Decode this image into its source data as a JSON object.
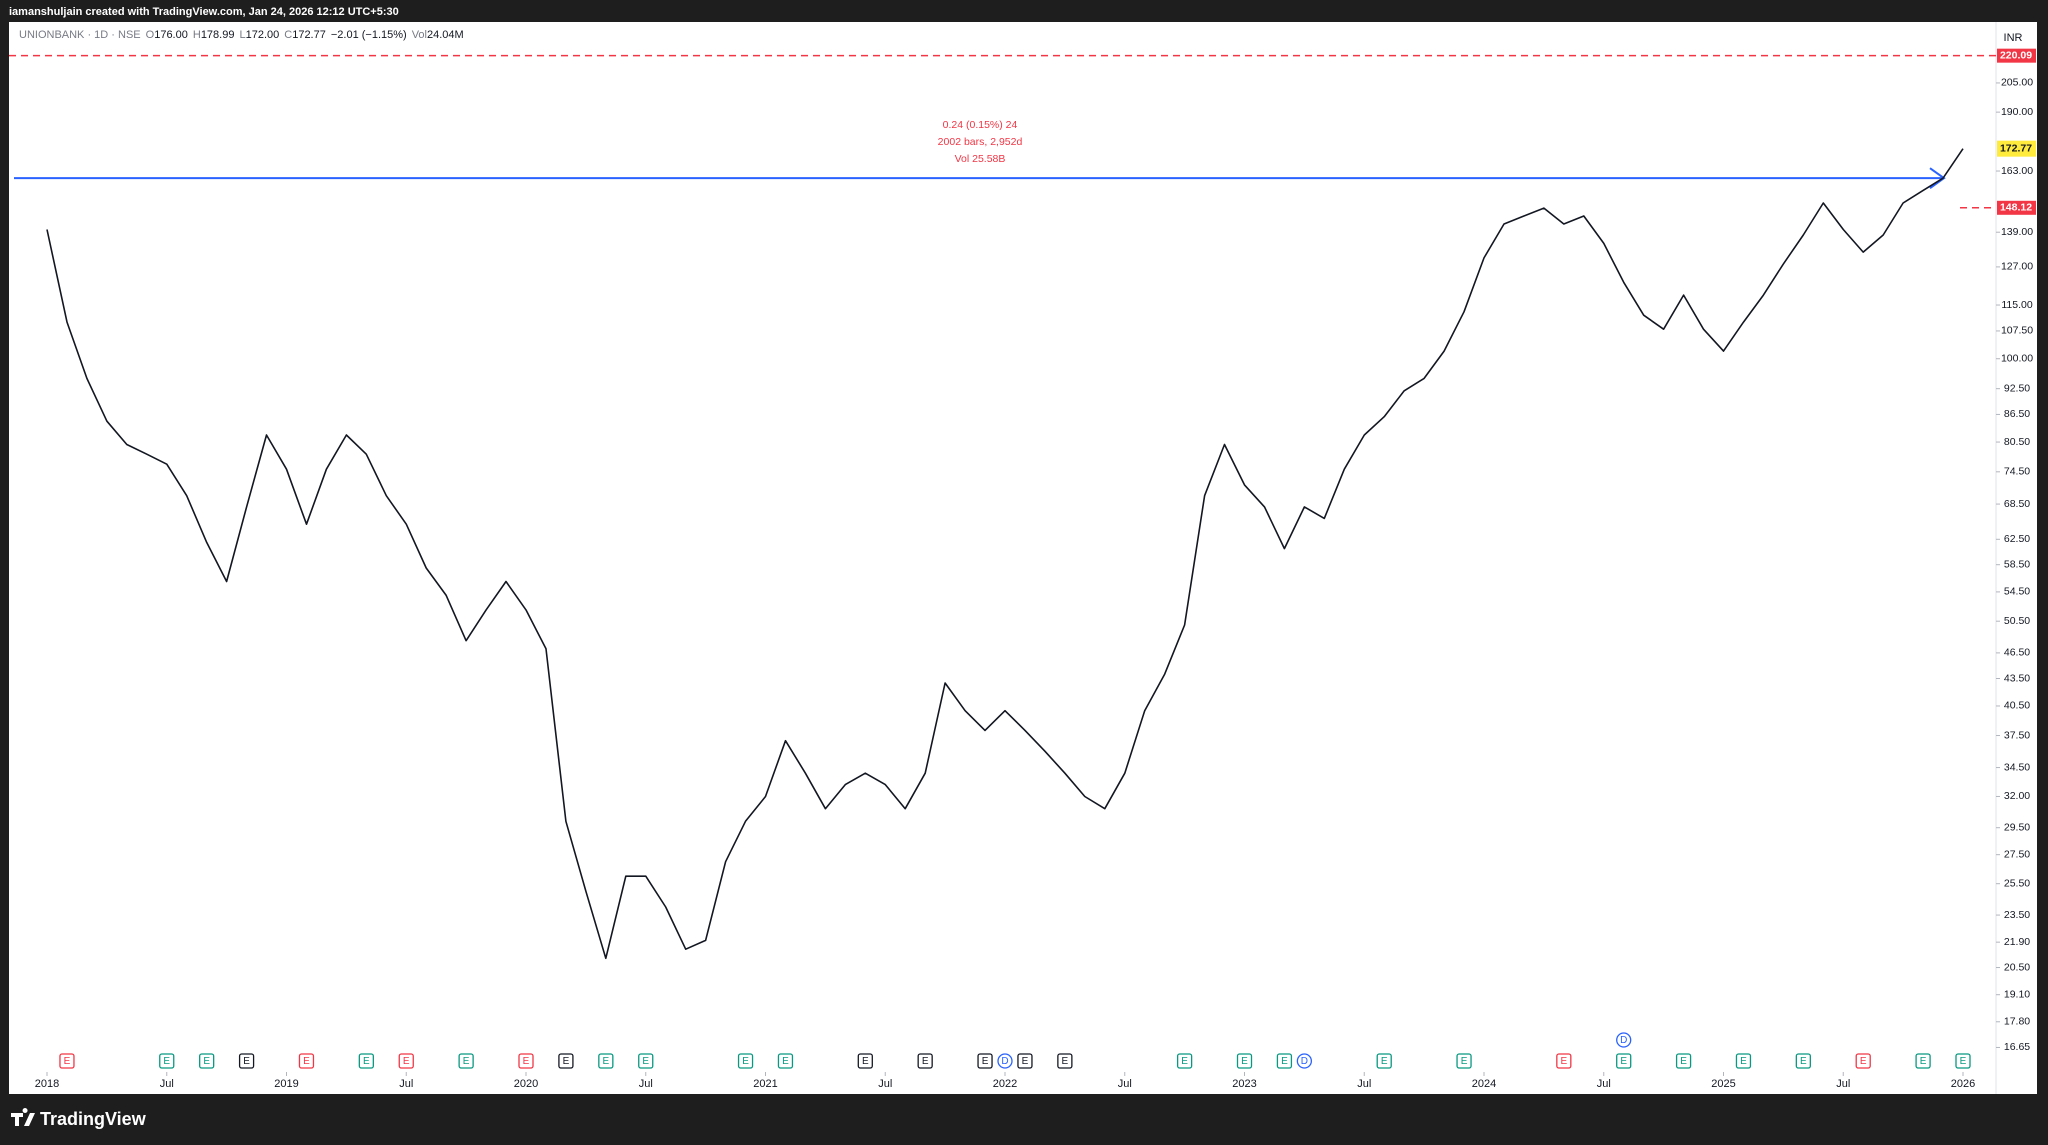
{
  "header": {
    "credit": "iamanshuljain created with TradingView.com, Jan 24, 2026 12:12 UTC+5:30",
    "symbol": "UNIONBANK · 1D · NSE",
    "quote": [
      [
        "O",
        "176.00"
      ],
      [
        "H",
        "178.99"
      ],
      [
        "L",
        "172.00"
      ],
      [
        "C",
        "172.77"
      ]
    ],
    "change": "−2.01 (−1.15%)",
    "volume_label": "Vol",
    "volume": "24.04M",
    "currency": "INR"
  },
  "footer": {
    "logo": "TradingView"
  },
  "chart_data": {
    "type": "line",
    "log_scale": true,
    "grid": false,
    "color": "#131722",
    "x": [
      "2018-01",
      "2018-02",
      "2018-03",
      "2018-04",
      "2018-05",
      "2018-06",
      "2018-07",
      "2018-08",
      "2018-09",
      "2018-10",
      "2018-11",
      "2018-12",
      "2019-01",
      "2019-02",
      "2019-03",
      "2019-04",
      "2019-05",
      "2019-06",
      "2019-07",
      "2019-08",
      "2019-09",
      "2019-10",
      "2019-11",
      "2019-12",
      "2020-01",
      "2020-02",
      "2020-03",
      "2020-04",
      "2020-05",
      "2020-06",
      "2020-07",
      "2020-08",
      "2020-09",
      "2020-10",
      "2020-11",
      "2020-12",
      "2021-01",
      "2021-02",
      "2021-03",
      "2021-04",
      "2021-05",
      "2021-06",
      "2021-07",
      "2021-08",
      "2021-09",
      "2021-10",
      "2021-11",
      "2021-12",
      "2022-01",
      "2022-02",
      "2022-03",
      "2022-04",
      "2022-05",
      "2022-06",
      "2022-07",
      "2022-08",
      "2022-09",
      "2022-10",
      "2022-11",
      "2022-12",
      "2023-01",
      "2023-02",
      "2023-03",
      "2023-04",
      "2023-05",
      "2023-06",
      "2023-07",
      "2023-08",
      "2023-09",
      "2023-10",
      "2023-11",
      "2023-12",
      "2024-01",
      "2024-02",
      "2024-03",
      "2024-04",
      "2024-05",
      "2024-06",
      "2024-07",
      "2024-08",
      "2024-09",
      "2024-10",
      "2024-11",
      "2024-12",
      "2025-01",
      "2025-02",
      "2025-03",
      "2025-04",
      "2025-05",
      "2025-06",
      "2025-07",
      "2025-08",
      "2025-09",
      "2025-10",
      "2025-11",
      "2025-12",
      "2026-01"
    ],
    "values": [
      140,
      110,
      95,
      85,
      80,
      78,
      76,
      70,
      62,
      56,
      68,
      82,
      75,
      65,
      75,
      82,
      78,
      70,
      65,
      58,
      54,
      48,
      52,
      56,
      52,
      47,
      30,
      25,
      21,
      26,
      26,
      24,
      21.5,
      22,
      27,
      30,
      32,
      37,
      34,
      31,
      33,
      34,
      33,
      31,
      34,
      43,
      40,
      38,
      40,
      38,
      36,
      34,
      32,
      31,
      34,
      40,
      44,
      50,
      70,
      80,
      72,
      68,
      61,
      68,
      66,
      75,
      82,
      86,
      92,
      95,
      102,
      113,
      130,
      142,
      145,
      148,
      142,
      145,
      135,
      122,
      112,
      108,
      118,
      108,
      102,
      110,
      118,
      128,
      138,
      150,
      140,
      132,
      138,
      150,
      155,
      160,
      172.77
    ],
    "xticks": [
      {
        "value": "2018-01",
        "label": "2018"
      },
      {
        "value": "2018-07",
        "label": "Jul"
      },
      {
        "value": "2019-01",
        "label": "2019"
      },
      {
        "value": "2019-07",
        "label": "Jul"
      },
      {
        "value": "2020-01",
        "label": "2020"
      },
      {
        "value": "2020-07",
        "label": "Jul"
      },
      {
        "value": "2021-01",
        "label": "2021"
      },
      {
        "value": "2021-07",
        "label": "Jul"
      },
      {
        "value": "2022-01",
        "label": "2022"
      },
      {
        "value": "2022-07",
        "label": "Jul"
      },
      {
        "value": "2023-01",
        "label": "2023"
      },
      {
        "value": "2023-07",
        "label": "Jul"
      },
      {
        "value": "2024-01",
        "label": "2024"
      },
      {
        "value": "2024-07",
        "label": "Jul"
      },
      {
        "value": "2025-01",
        "label": "2025"
      },
      {
        "value": "2025-07",
        "label": "Jul"
      },
      {
        "value": "2026-01",
        "label": "2026"
      }
    ],
    "ylim": [
      15.66,
      239
    ],
    "yticks": [
      {
        "value": 205,
        "label": "205.00"
      },
      {
        "value": 190,
        "label": "190.00"
      },
      {
        "value": 163,
        "label": "163.00"
      },
      {
        "value": 139,
        "label": "139.00"
      },
      {
        "value": 127,
        "label": "127.00"
      },
      {
        "value": 115,
        "label": "115.00"
      },
      {
        "value": 107.5,
        "label": "107.50"
      },
      {
        "value": 100,
        "label": "100.00"
      },
      {
        "value": 92.5,
        "label": "92.50"
      },
      {
        "value": 86.5,
        "label": "86.50"
      },
      {
        "value": 80.5,
        "label": "80.50"
      },
      {
        "value": 74.5,
        "label": "74.50"
      },
      {
        "value": 68.5,
        "label": "68.50"
      },
      {
        "value": 62.5,
        "label": "62.50"
      },
      {
        "value": 58.5,
        "label": "58.50"
      },
      {
        "value": 54.5,
        "label": "54.50"
      },
      {
        "value": 50.5,
        "label": "50.50"
      },
      {
        "value": 46.5,
        "label": "46.50"
      },
      {
        "value": 43.5,
        "label": "43.50"
      },
      {
        "value": 40.5,
        "label": "40.50"
      },
      {
        "value": 37.5,
        "label": "37.50"
      },
      {
        "value": 34.5,
        "label": "34.50"
      },
      {
        "value": 32,
        "label": "32.00"
      },
      {
        "value": 29.5,
        "label": "29.50"
      },
      {
        "value": 27.5,
        "label": "27.50"
      },
      {
        "value": 25.5,
        "label": "25.50"
      },
      {
        "value": 23.5,
        "label": "23.50"
      },
      {
        "value": 21.9,
        "label": "21.90"
      },
      {
        "value": 20.5,
        "label": "20.50"
      },
      {
        "value": 19.1,
        "label": "19.10"
      },
      {
        "value": 17.8,
        "label": "17.80"
      },
      {
        "value": 16.65,
        "label": "16.65"
      }
    ],
    "last_price": 172.77,
    "last_price_color": "#ffeb3b",
    "alert_levels": [
      220.09,
      148.12
    ],
    "alert_color": "#f23645",
    "trend_line": {
      "value": 160,
      "color": "#2962ff"
    },
    "measure_labels": [
      "0.24 (0.15%) 24",
      "2002 bars, 2,952d",
      "Vol 25.58B"
    ],
    "events": [
      {
        "label": "E",
        "x": "2018-02",
        "color": "#f23645"
      },
      {
        "label": "E",
        "x": "2018-07",
        "color": "#089981"
      },
      {
        "label": "E",
        "x": "2018-09",
        "color": "#089981"
      },
      {
        "label": "E",
        "x": "2018-11",
        "color": "#131722"
      },
      {
        "label": "E",
        "x": "2019-02",
        "color": "#f23645"
      },
      {
        "label": "E",
        "x": "2019-05",
        "color": "#089981"
      },
      {
        "label": "E",
        "x": "2019-07",
        "color": "#f23645"
      },
      {
        "label": "E",
        "x": "2019-10",
        "color": "#089981"
      },
      {
        "label": "E",
        "x": "2020-01",
        "color": "#f23645"
      },
      {
        "label": "E",
        "x": "2020-03",
        "color": "#131722"
      },
      {
        "label": "E",
        "x": "2020-05",
        "color": "#089981"
      },
      {
        "label": "E",
        "x": "2020-07",
        "color": "#089981"
      },
      {
        "label": "E",
        "x": "2020-12",
        "color": "#089981"
      },
      {
        "label": "E",
        "x": "2021-02",
        "color": "#089981"
      },
      {
        "label": "E",
        "x": "2021-06",
        "color": "#131722"
      },
      {
        "label": "E",
        "x": "2021-09",
        "color": "#131722"
      },
      {
        "label": "E",
        "x": "2021-12",
        "color": "#131722"
      },
      {
        "label": "D",
        "x": "2022-01",
        "color": "#2962ff"
      },
      {
        "label": "E",
        "x": "2022-02",
        "color": "#131722"
      },
      {
        "label": "E",
        "x": "2022-04",
        "color": "#131722"
      },
      {
        "label": "E",
        "x": "2022-10",
        "color": "#089981"
      },
      {
        "label": "E",
        "x": "2023-01",
        "color": "#089981"
      },
      {
        "label": "E",
        "x": "2023-03",
        "color": "#089981"
      },
      {
        "label": "D",
        "x": "2023-04",
        "color": "#2962ff"
      },
      {
        "label": "E",
        "x": "2023-08",
        "color": "#089981"
      },
      {
        "label": "E",
        "x": "2023-12",
        "color": "#089981"
      },
      {
        "label": "E",
        "x": "2024-05",
        "color": "#f23645"
      },
      {
        "label": "E",
        "x": "2024-08",
        "color": "#089981"
      },
      {
        "label": "D",
        "x": "2024-08",
        "color": "#2962ff"
      },
      {
        "label": "E",
        "x": "2024-11",
        "color": "#089981"
      },
      {
        "label": "E",
        "x": "2025-02",
        "color": "#089981"
      },
      {
        "label": "E",
        "x": "2025-05",
        "color": "#089981"
      },
      {
        "label": "E",
        "x": "2025-08",
        "color": "#f23645"
      },
      {
        "label": "E",
        "x": "2025-11",
        "color": "#089981"
      },
      {
        "label": "E",
        "x": "2026-01",
        "color": "#089981"
      }
    ]
  }
}
